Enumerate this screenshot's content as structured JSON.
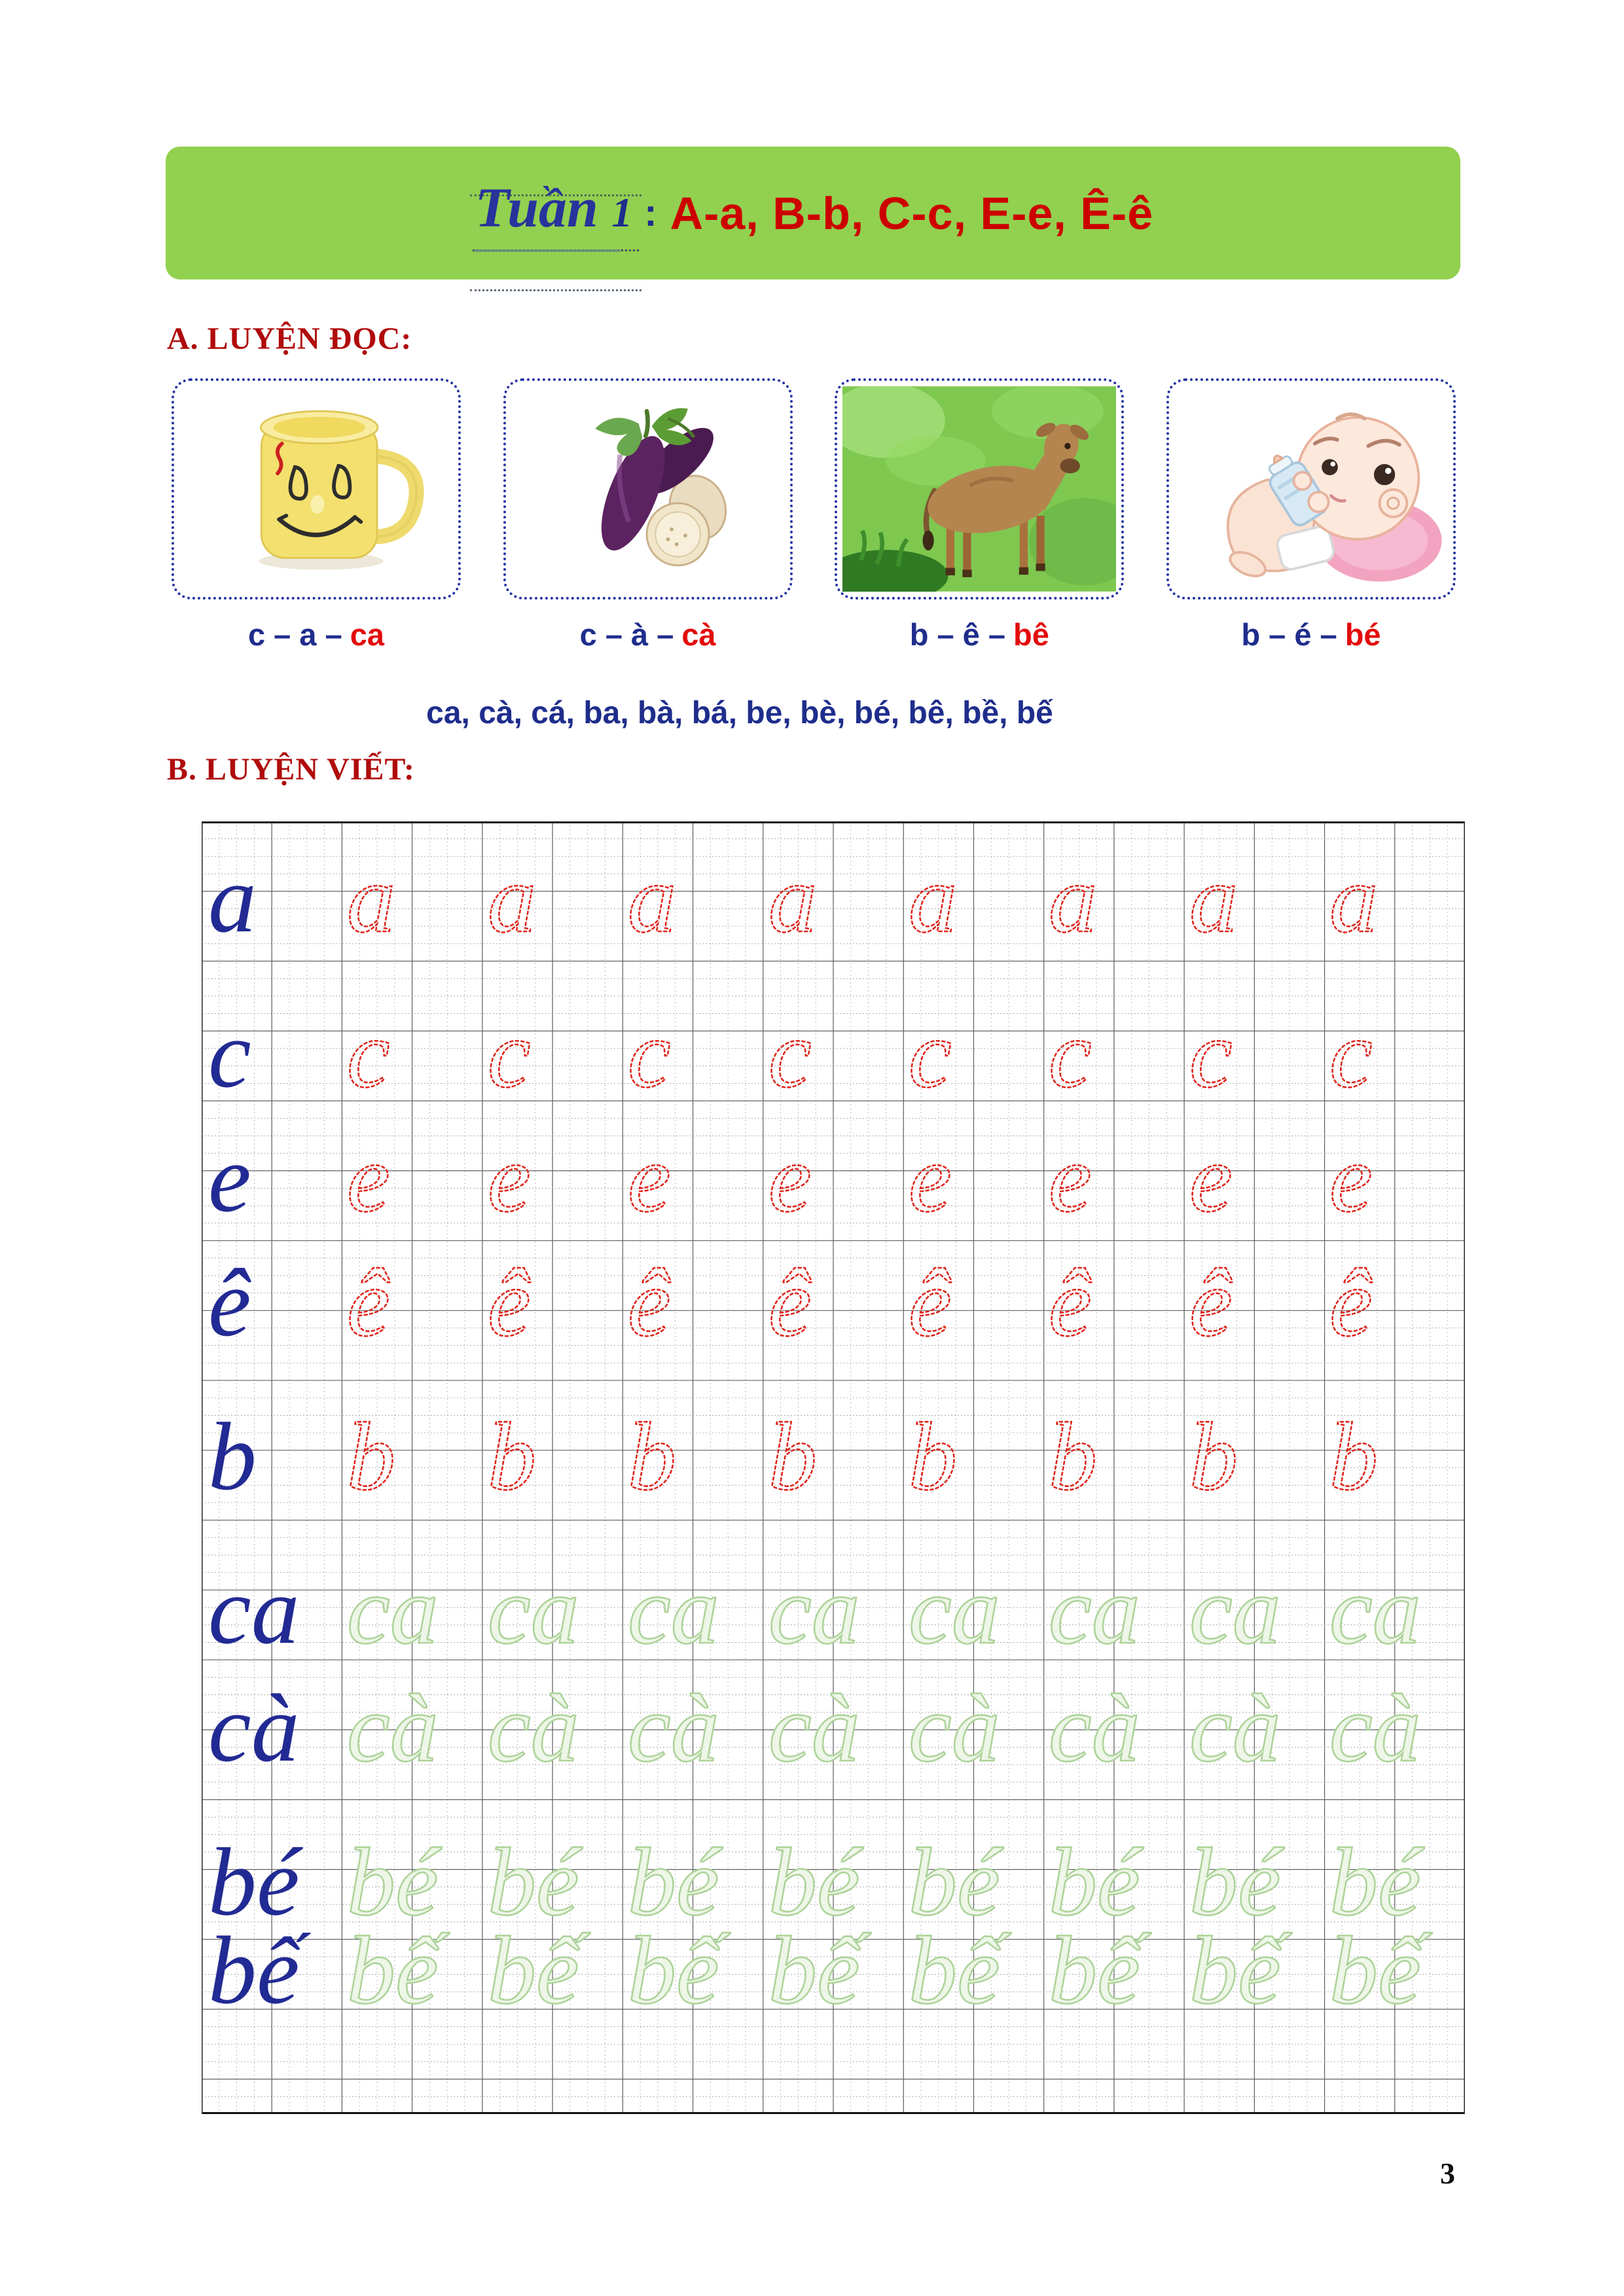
{
  "page": {
    "number": "3"
  },
  "header": {
    "week_label": "Tuần",
    "week_number": "1",
    "colon": ":",
    "lessons": "A-a, B-b, C-c, E-e, Ê-ê",
    "bg_color": "#92d050",
    "label_color": "#28339b",
    "lessons_color": "#cc0000"
  },
  "section_a": {
    "title": "A. LUYỆN ĐỌC:",
    "title_color": "#b00b0b",
    "cards": [
      {
        "image": "smiley-mug",
        "prefix": "c – a –",
        "word": "ca"
      },
      {
        "image": "eggplants",
        "prefix": "c – à –",
        "word": "cà"
      },
      {
        "image": "calf",
        "prefix": "b – ê –",
        "word": "bê"
      },
      {
        "image": "baby-with-bottle",
        "prefix": "b – é –",
        "word": "bé"
      }
    ],
    "word_list": "ca, cà, cá, ba, bà, bá, be, bè, bé, bê, bề, bế"
  },
  "section_b": {
    "title": "B. LUYỆN VIẾT:",
    "title_color": "#b00b0b",
    "rows": [
      {
        "letter": "a",
        "style": "red",
        "count": 8
      },
      {
        "letter": "c",
        "style": "red",
        "count": 8
      },
      {
        "letter": "e",
        "style": "red",
        "count": 8
      },
      {
        "letter": "ê",
        "style": "red",
        "count": 8
      },
      {
        "letter": "b",
        "style": "red",
        "count": 8
      },
      {
        "letter": "ca",
        "style": "green",
        "count": 8
      },
      {
        "letter": "cà",
        "style": "green",
        "count": 8
      },
      {
        "letter": "bé",
        "style": "green",
        "count": 8
      },
      {
        "letter": "bế",
        "style": "green",
        "count": 8
      }
    ]
  },
  "colors": {
    "model_letter_blue": "#222a94",
    "trace_red": "#e0251c",
    "trace_green": "#aed39a",
    "syllable_blue": "#1f2d8c",
    "syllable_red": "#e30b0b",
    "grid_line_gray": "#9f9f9f"
  }
}
